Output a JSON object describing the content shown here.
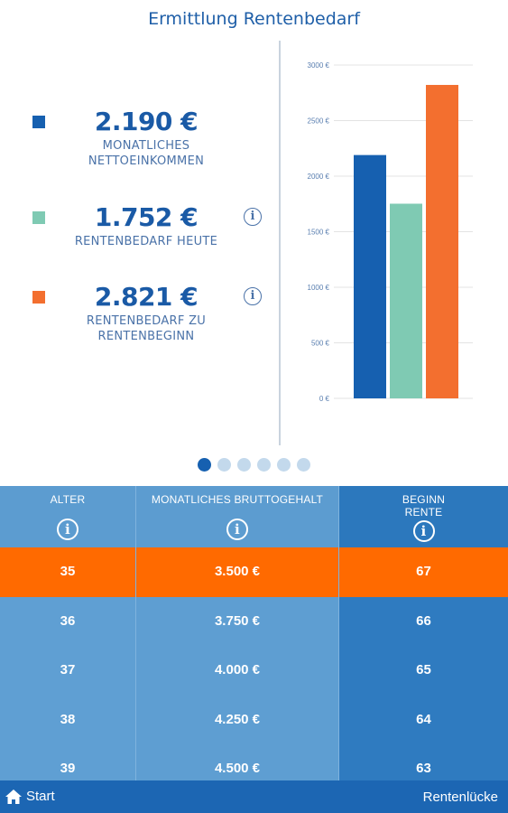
{
  "title": "Ermittlung Rentenbedarf",
  "kpis": [
    {
      "value": "2.190 €",
      "label_line1": "MONATLICHES",
      "label_line2": "NETTOEINKOMMEN",
      "color": "#1660b0",
      "has_info": false
    },
    {
      "value": "1.752 €",
      "label_line1": "RENTENBEDARF HEUTE",
      "label_line2": "",
      "color": "#7fcab3",
      "has_info": true
    },
    {
      "value": "2.821 €",
      "label_line1": "RENTENBEDARF ZU",
      "label_line2": "RENTENBEGINN",
      "color": "#f36f2f",
      "has_info": true
    }
  ],
  "chart_data": {
    "type": "bar",
    "categories": [
      "Monatliches Nettoeinkommen",
      "Rentenbedarf heute",
      "Rentenbedarf zu Rentenbeginn"
    ],
    "values": [
      2190,
      1752,
      2821
    ],
    "colors": [
      "#1660b0",
      "#7fcab3",
      "#f36f2f"
    ],
    "ylim": [
      0,
      3000
    ],
    "yticks": [
      0,
      500,
      1000,
      1500,
      2000,
      2500,
      3000
    ],
    "ytick_labels": [
      "0 €",
      "500 €",
      "1000 €",
      "1500 €",
      "2000 €",
      "2500 €",
      "3000 €"
    ],
    "grid": true
  },
  "pager": {
    "count": 6,
    "active": 0
  },
  "table": {
    "headers": [
      {
        "line1": "ALTER",
        "line2": ""
      },
      {
        "line1": "MONATLICHES BRUTTOGEHALT",
        "line2": ""
      },
      {
        "line1": "BEGINN",
        "line2": "RENTE"
      }
    ],
    "rows": [
      {
        "age": "35",
        "salary": "3.500 €",
        "start": "67",
        "selected": true
      },
      {
        "age": "36",
        "salary": "3.750 €",
        "start": "66",
        "selected": false
      },
      {
        "age": "37",
        "salary": "4.000 €",
        "start": "65",
        "selected": false
      },
      {
        "age": "38",
        "salary": "4.250 €",
        "start": "64",
        "selected": false
      },
      {
        "age": "39",
        "salary": "4.500 €",
        "start": "63",
        "selected": false
      }
    ]
  },
  "bottom_bar": {
    "start_label": "Start",
    "start_icon": "home-icon",
    "gap_label": "Rentenlücke"
  }
}
